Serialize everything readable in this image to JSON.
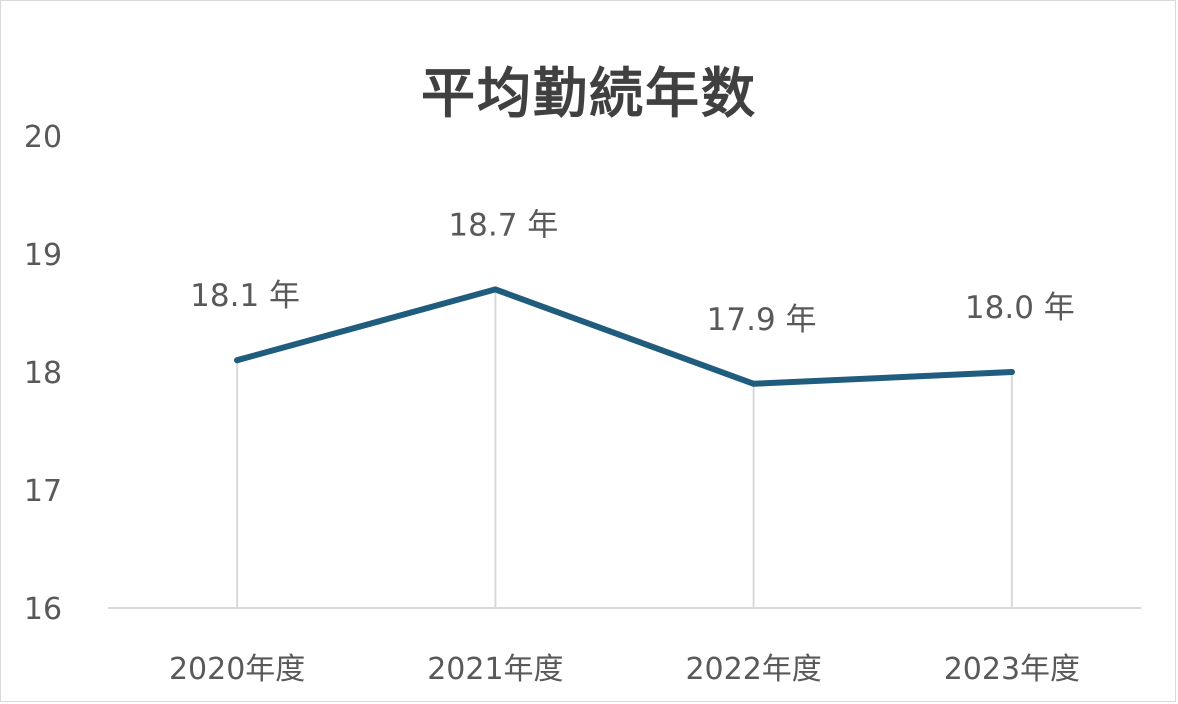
{
  "chart_data": {
    "type": "line",
    "title": "平均勤続年数",
    "categories": [
      "2020年度",
      "2021年度",
      "2022年度",
      "2023年度"
    ],
    "series": [
      {
        "values": [
          18.1,
          18.7,
          17.9,
          18.0
        ],
        "data_labels": [
          "18.1 年",
          "18.7 年",
          "17.9 年",
          "18.0 年"
        ],
        "color": "#1f5c7d"
      }
    ],
    "yticks": [
      "16",
      "17",
      "18",
      "19",
      "20"
    ],
    "ylim": [
      16,
      20
    ],
    "grid": false,
    "drop_lines": true,
    "legend": "none"
  }
}
